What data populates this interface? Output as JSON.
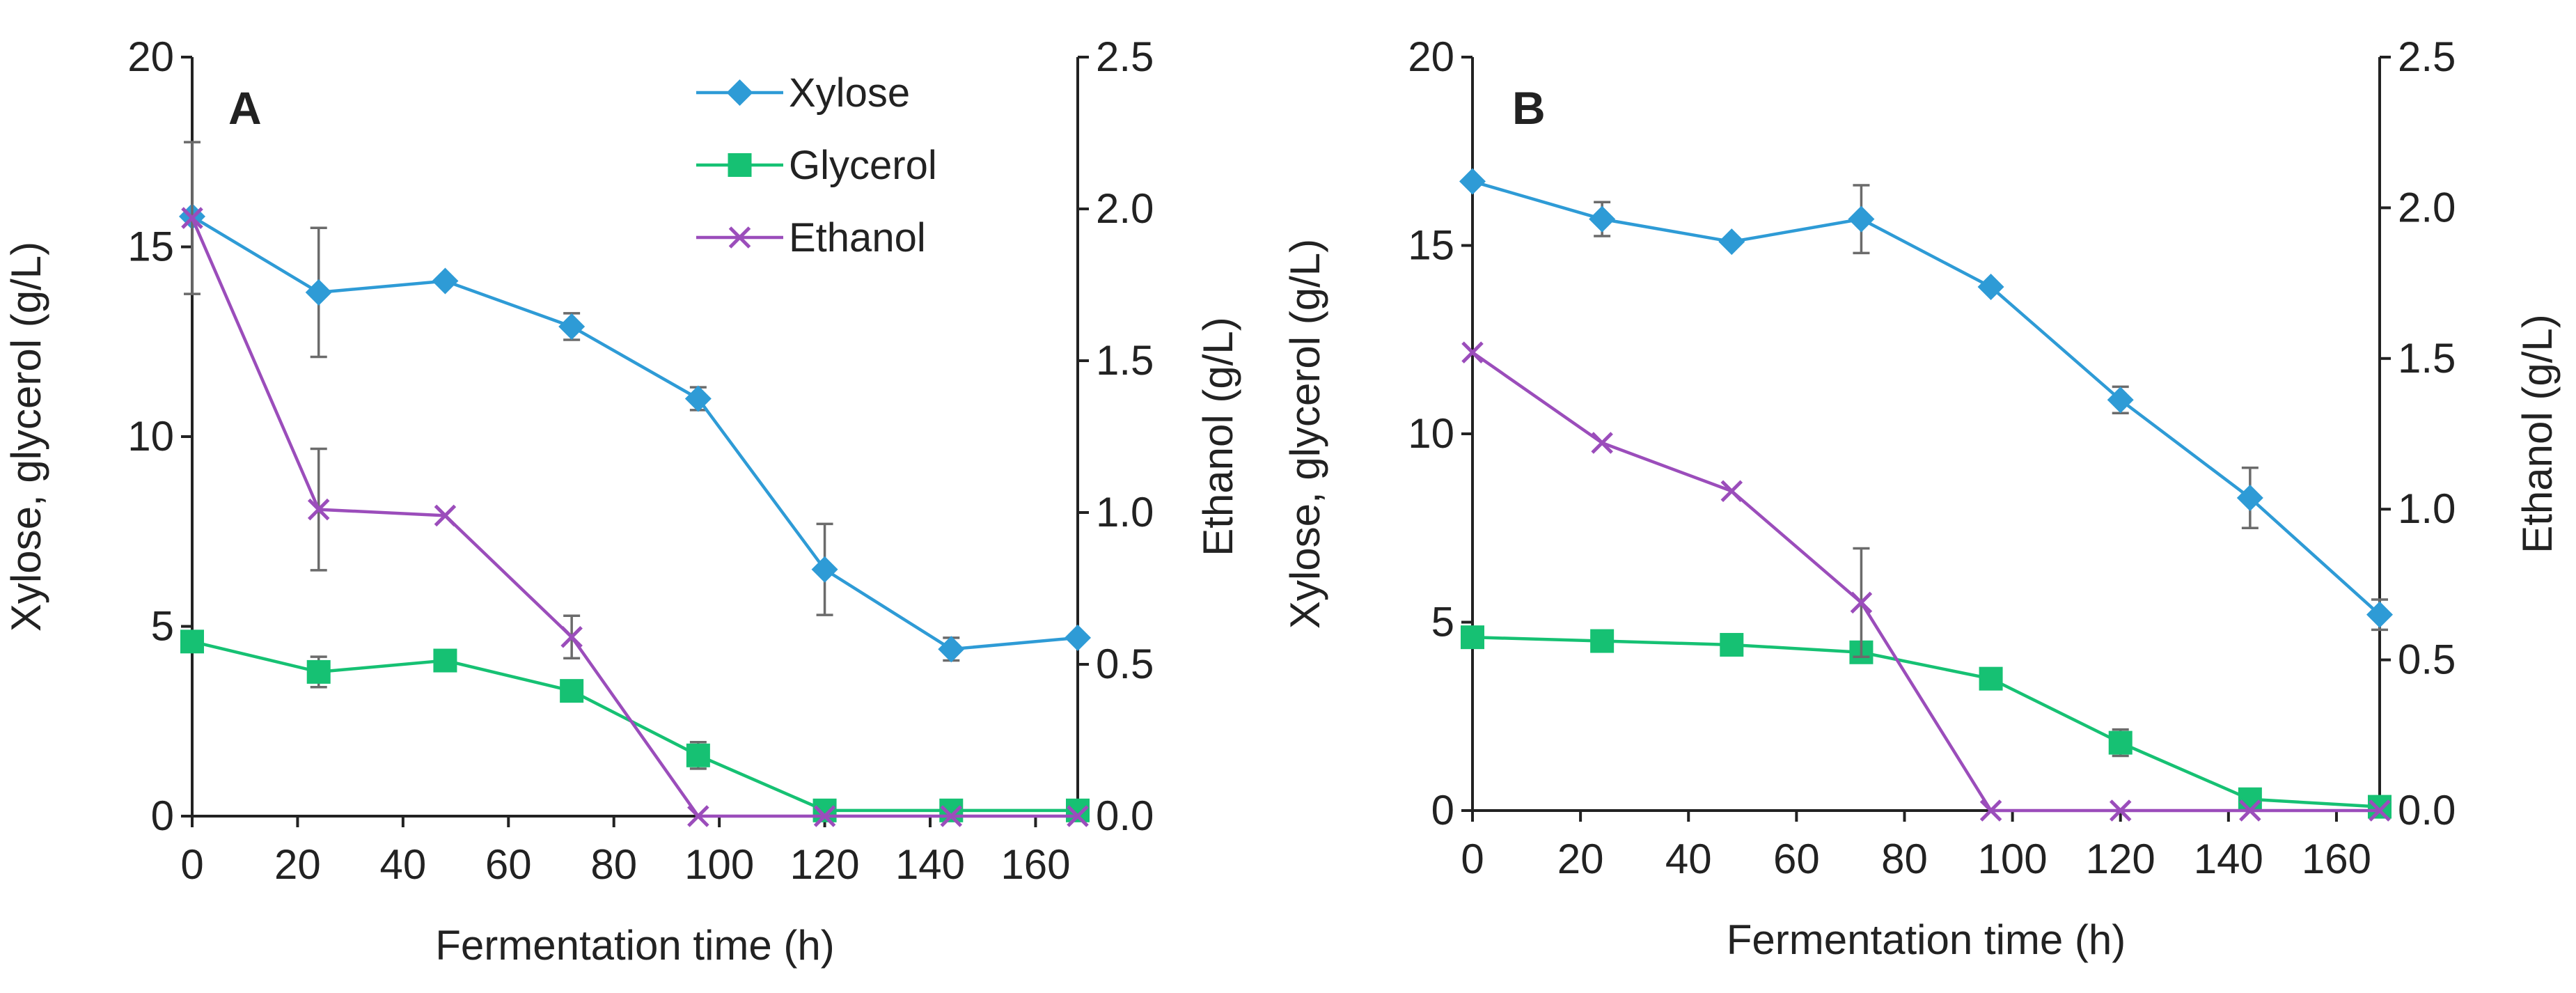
{
  "colors": {
    "xylose": "#2e9bd6",
    "glycerol": "#16c173",
    "ethanol": "#9b4dbb",
    "axis": "#222222",
    "error_bar": "#6b6b6b"
  },
  "legend": [
    {
      "key": "xylose",
      "label": "Xylose",
      "marker": "diamond"
    },
    {
      "key": "glycerol",
      "label": "Glycerol",
      "marker": "square"
    },
    {
      "key": "ethanol",
      "label": "Ethanol",
      "marker": "cross"
    }
  ],
  "chart_data": [
    {
      "panel": "A",
      "type": "line",
      "xlabel": "Fermentation time (h)",
      "ylabel_left": "Xylose, glycerol (g/L)",
      "ylabel_right": "Ethanol (g/L)",
      "x": [
        0,
        24,
        48,
        72,
        96,
        120,
        144,
        168
      ],
      "xlim": [
        0,
        168
      ],
      "xticks": [
        "0",
        "20",
        "40",
        "60",
        "80",
        "100",
        "120",
        "140",
        "160"
      ],
      "ylim_left": [
        0,
        20
      ],
      "yticks_left": [
        "0",
        "5",
        "10",
        "15",
        "20"
      ],
      "ylim_right": [
        0,
        2.5
      ],
      "yticks_right": [
        "0.0",
        "0.5",
        "1.0",
        "1.5",
        "2.0",
        "2.5"
      ],
      "legend_position": "top-center",
      "series": [
        {
          "key": "xylose",
          "name": "Xylose",
          "axis": "left",
          "marker": "diamond",
          "values": [
            15.8,
            13.8,
            14.1,
            12.9,
            11.0,
            6.5,
            4.4,
            4.7
          ],
          "errors": [
            0,
            1.7,
            0,
            0.35,
            0.3,
            1.2,
            0.3,
            0
          ]
        },
        {
          "key": "glycerol",
          "name": "Glycerol",
          "axis": "left",
          "marker": "square",
          "values": [
            4.6,
            3.8,
            4.1,
            3.3,
            1.6,
            0.15,
            0.15,
            0.15
          ],
          "errors": [
            0,
            0.4,
            0,
            0,
            0.35,
            0,
            0,
            0
          ]
        },
        {
          "key": "ethanol",
          "name": "Ethanol",
          "axis": "right",
          "marker": "cross",
          "values": [
            1.97,
            1.01,
            0.99,
            0.59,
            0.0,
            0.0,
            0.0,
            0.0
          ],
          "errors": [
            0.25,
            0.2,
            0,
            0.07,
            0,
            0,
            0,
            0
          ]
        }
      ]
    },
    {
      "panel": "B",
      "type": "line",
      "xlabel": "Fermentation time (h)",
      "ylabel_left": "Xylose, glycerol  (g/L)",
      "ylabel_right": "Ethanol  (g/L)",
      "x": [
        0,
        24,
        48,
        72,
        96,
        120,
        144,
        168
      ],
      "xlim": [
        0,
        168
      ],
      "xticks": [
        "0",
        "20",
        "40",
        "60",
        "80",
        "100",
        "120",
        "140",
        "160"
      ],
      "ylim_left": [
        0,
        20
      ],
      "yticks_left": [
        "0",
        "5",
        "10",
        "15",
        "20"
      ],
      "ylim_right": [
        0,
        2.5
      ],
      "yticks_right": [
        "0.0",
        "0.5",
        "1.0",
        "1.5",
        "2.0",
        "2.5"
      ],
      "legend_position": "none",
      "series": [
        {
          "key": "xylose",
          "name": "Xylose",
          "axis": "left",
          "marker": "diamond",
          "values": [
            16.7,
            15.7,
            15.1,
            15.7,
            13.9,
            10.9,
            8.3,
            5.2
          ],
          "errors": [
            0,
            0.45,
            0,
            0.9,
            0,
            0.35,
            0.8,
            0.4
          ]
        },
        {
          "key": "glycerol",
          "name": "Glycerol",
          "axis": "left",
          "marker": "square",
          "values": [
            4.6,
            4.5,
            4.4,
            4.2,
            3.5,
            1.8,
            0.3,
            0.1
          ],
          "errors": [
            0,
            0,
            0,
            0.2,
            0,
            0.35,
            0,
            0
          ]
        },
        {
          "key": "ethanol",
          "name": "Ethanol",
          "axis": "right",
          "marker": "cross",
          "values": [
            1.52,
            1.22,
            1.06,
            0.69,
            0.0,
            0.0,
            0.0,
            0.0
          ],
          "errors": [
            0,
            0,
            0,
            0.18,
            0,
            0,
            0,
            0
          ]
        }
      ]
    }
  ]
}
